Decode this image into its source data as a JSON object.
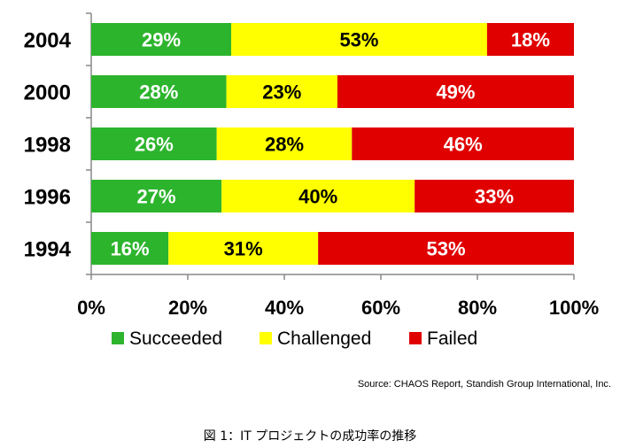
{
  "chart_data": {
    "type": "bar",
    "stacked": true,
    "orientation": "horizontal",
    "categories": [
      "2004",
      "2000",
      "1998",
      "1996",
      "1994"
    ],
    "series": [
      {
        "name": "Succeeded",
        "color": "#2db42d",
        "values": [
          29,
          28,
          26,
          27,
          16
        ],
        "labels": [
          "29%",
          "28%",
          "26%",
          "27%",
          "16%"
        ]
      },
      {
        "name": "Challenged",
        "color": "#ffff00",
        "values": [
          53,
          23,
          28,
          40,
          31
        ],
        "labels": [
          "53%",
          "23%",
          "28%",
          "40%",
          "31%"
        ]
      },
      {
        "name": "Failed",
        "color": "#e00000",
        "values": [
          18,
          49,
          46,
          33,
          53
        ],
        "labels": [
          "18%",
          "49%",
          "46%",
          "33%",
          "53%"
        ]
      }
    ],
    "xlim": [
      0,
      100
    ],
    "xticks": [
      "0%",
      "20%",
      "40%",
      "60%",
      "80%",
      "100%"
    ],
    "legend_position": "bottom",
    "grid": false
  },
  "source": "Source: CHAOS Report, Standish Group International, Inc.",
  "caption": "図 1：IT プロジェクトの成功率の推移"
}
